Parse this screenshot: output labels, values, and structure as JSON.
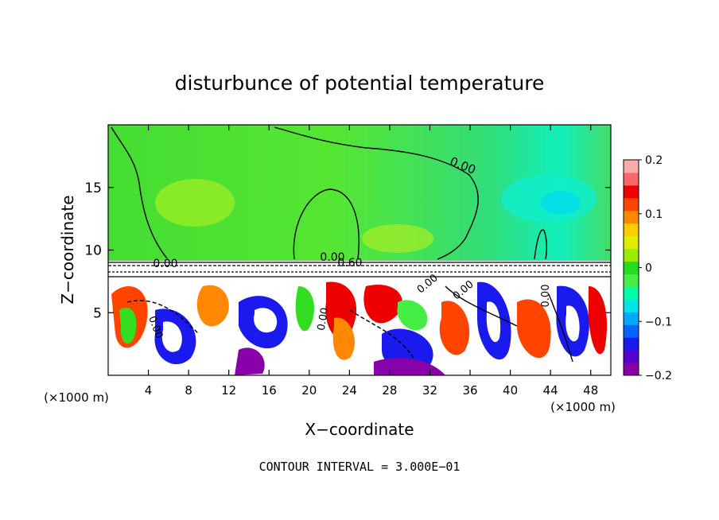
{
  "chart_data": {
    "type": "heatmap",
    "title": "disturbunce of potential temperature",
    "xlabel": "X−coordinate",
    "ylabel": "Z−coordinate",
    "x_unit_left": "(×1000 m)",
    "x_unit_right": "(×1000 m)",
    "xlim": [
      0,
      50
    ],
    "ylim": [
      0,
      20
    ],
    "xticks": [
      4,
      8,
      12,
      16,
      20,
      24,
      28,
      32,
      36,
      40,
      44,
      48
    ],
    "yticks": [
      5,
      10,
      15
    ],
    "colorbar": {
      "range": [
        -0.2,
        0.2
      ],
      "ticks": [
        0.2,
        0.1,
        0,
        -0.1,
        -0.2
      ],
      "tick_labels": [
        "0.2",
        "0.1",
        "0",
        "−0.1",
        "−0.2"
      ],
      "colors": [
        "#8800aa",
        "#5500cc",
        "#1a1aee",
        "#0066ff",
        "#00aaff",
        "#00e6e6",
        "#00ffaa",
        "#44ee44",
        "#22dd22",
        "#99ee00",
        "#ddee00",
        "#ffcc00",
        "#ff8800",
        "#ff4400",
        "#ee0000",
        "#ff6666",
        "#ffaaaa"
      ]
    },
    "contour_labels": [
      "0.00",
      "0.00",
      "0.00",
      "0.60",
      "0.00",
      "0.00",
      "0.00",
      "0.00",
      "0.00"
    ],
    "contour_interval_text": "CONTOUR INTERVAL = 3.000E−01"
  }
}
